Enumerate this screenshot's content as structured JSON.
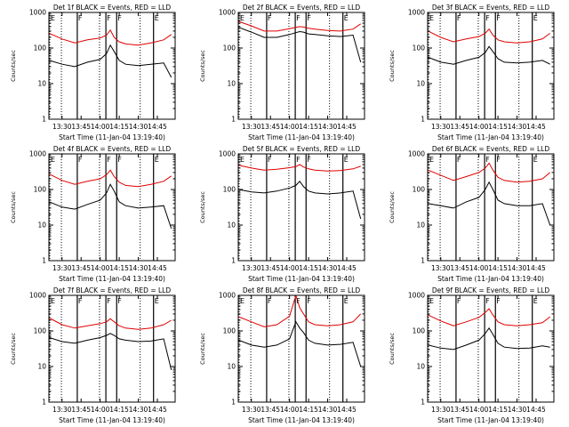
{
  "figure": {
    "colors": {
      "events": "#000000",
      "lld": "#e00000",
      "axes": "#000000"
    },
    "xlabel": "Start Time (11-Jan-04 13:19:40)",
    "ylabel": "Counts/sec"
  },
  "chart_data": [
    {
      "type": "line",
      "title": "Det 1f BLACK = Events, RED = LLD",
      "xlabel": "Start Time (11-Jan-04 13:19:40)",
      "ylabel": "Counts/sec",
      "ylog": true,
      "ylim": [
        1,
        1000
      ],
      "xlim": [
        "13:19:40",
        "14:59:00"
      ],
      "x_ticks": [
        "13:30",
        "13:45",
        "14:00",
        "14:15",
        "14:30",
        "14:45"
      ],
      "y_ticks": [
        "1",
        "10",
        "100",
        "1000"
      ],
      "x": [
        "13:20",
        "13:30",
        "13:40",
        "13:50",
        "14:00",
        "14:05",
        "14:08",
        "14:11",
        "14:15",
        "14:20",
        "14:30",
        "14:40",
        "14:50",
        "14:56"
      ],
      "series": [
        {
          "name": "Events",
          "color": "#000000",
          "values": [
            45,
            35,
            30,
            40,
            48,
            70,
            120,
            80,
            45,
            35,
            32,
            35,
            38,
            15
          ]
        },
        {
          "name": "LLD",
          "color": "#e00000",
          "values": [
            260,
            180,
            140,
            170,
            190,
            230,
            320,
            200,
            150,
            130,
            120,
            140,
            170,
            240
          ]
        }
      ],
      "vlines_dotted": [
        "13:20:20",
        "13:29:30",
        "13:59:30",
        "14:31:30"
      ],
      "vlines_solid": [
        "13:42:00",
        "14:04:30",
        "14:13:00",
        "14:42:00"
      ],
      "labels": [
        "E",
        "F",
        "F",
        "F",
        "E"
      ]
    },
    {
      "type": "line",
      "title": "Det 2f BLACK = Events, RED = LLD",
      "xlabel": "Start Time (11-Jan-04 13:19:40)",
      "ylabel": "Counts/sec",
      "ylog": true,
      "ylim": [
        1,
        1000
      ],
      "xlim": [
        "13:19:40",
        "14:59:00"
      ],
      "x_ticks": [
        "13:30",
        "13:45",
        "14:00",
        "14:15",
        "14:30",
        "14:45"
      ],
      "y_ticks": [
        "1",
        "10",
        "100",
        "1000"
      ],
      "x": [
        "13:20",
        "13:30",
        "13:40",
        "13:50",
        "14:00",
        "14:05",
        "14:08",
        "14:11",
        "14:15",
        "14:20",
        "14:30",
        "14:40",
        "14:50",
        "14:56"
      ],
      "series": [
        {
          "name": "Events",
          "color": "#000000",
          "values": [
            380,
            280,
            200,
            200,
            240,
            270,
            290,
            280,
            250,
            240,
            220,
            210,
            230,
            40
          ]
        },
        {
          "name": "LLD",
          "color": "#e00000",
          "values": [
            560,
            420,
            300,
            300,
            350,
            380,
            400,
            390,
            360,
            340,
            310,
            300,
            340,
            480
          ]
        }
      ],
      "vlines_dotted": [
        "13:20:20",
        "13:29:30",
        "13:59:30",
        "14:31:30"
      ],
      "vlines_solid": [
        "13:42:00",
        "14:04:30",
        "14:13:00",
        "14:42:00"
      ],
      "labels": [
        "E",
        "F",
        "F",
        "F",
        "E"
      ]
    },
    {
      "type": "line",
      "title": "Det 3f BLACK = Events, RED = LLD",
      "xlabel": "Start Time (11-Jan-04 13:19:40)",
      "ylabel": "Counts/sec",
      "ylog": true,
      "ylim": [
        1,
        1000
      ],
      "xlim": [
        "13:19:40",
        "14:59:00"
      ],
      "x_ticks": [
        "13:30",
        "13:45",
        "14:00",
        "14:15",
        "14:30",
        "14:45"
      ],
      "y_ticks": [
        "1",
        "10",
        "100",
        "1000"
      ],
      "x": [
        "13:20",
        "13:30",
        "13:40",
        "13:50",
        "14:00",
        "14:05",
        "14:08",
        "14:11",
        "14:15",
        "14:20",
        "14:30",
        "14:40",
        "14:50",
        "14:56"
      ],
      "series": [
        {
          "name": "Events",
          "color": "#000000",
          "values": [
            55,
            40,
            35,
            45,
            55,
            75,
            110,
            80,
            50,
            40,
            38,
            40,
            45,
            35
          ]
        },
        {
          "name": "LLD",
          "color": "#e00000",
          "values": [
            300,
            200,
            150,
            180,
            210,
            260,
            340,
            230,
            170,
            150,
            140,
            150,
            180,
            260
          ]
        }
      ],
      "vlines_dotted": [
        "13:20:20",
        "13:29:30",
        "13:59:30",
        "14:31:30"
      ],
      "vlines_solid": [
        "13:42:00",
        "14:04:30",
        "14:13:00",
        "14:42:00"
      ],
      "labels": [
        "E",
        "F",
        "F",
        "F",
        "E"
      ]
    },
    {
      "type": "line",
      "title": "Det 4f BLACK = Events, RED = LLD",
      "xlabel": "Start Time (11-Jan-04 13:19:40)",
      "ylabel": "Counts/sec",
      "ylog": true,
      "ylim": [
        1,
        1000
      ],
      "xlim": [
        "13:19:40",
        "14:59:00"
      ],
      "x_ticks": [
        "13:30",
        "13:45",
        "14:00",
        "14:15",
        "14:30",
        "14:45"
      ],
      "y_ticks": [
        "1",
        "10",
        "100",
        "1000"
      ],
      "x": [
        "13:20",
        "13:30",
        "13:40",
        "13:50",
        "14:00",
        "14:05",
        "14:08",
        "14:11",
        "14:15",
        "14:20",
        "14:30",
        "14:40",
        "14:50",
        "14:56"
      ],
      "series": [
        {
          "name": "Events",
          "color": "#000000",
          "values": [
            45,
            32,
            28,
            38,
            50,
            80,
            140,
            90,
            45,
            35,
            30,
            32,
            35,
            8
          ]
        },
        {
          "name": "LLD",
          "color": "#e00000",
          "values": [
            270,
            180,
            140,
            170,
            200,
            260,
            350,
            230,
            160,
            130,
            120,
            140,
            170,
            240
          ]
        }
      ],
      "vlines_dotted": [
        "13:20:20",
        "13:29:30",
        "13:59:30",
        "14:31:30"
      ],
      "vlines_solid": [
        "13:42:00",
        "14:04:30",
        "14:13:00",
        "14:42:00"
      ],
      "labels": [
        "E",
        "F",
        "F",
        "F",
        "E"
      ]
    },
    {
      "type": "line",
      "title": "Det 5f BLACK = Events, RED = LLD",
      "xlabel": "Start Time (11-Jan-04 13:19:40)",
      "ylabel": "Counts/sec",
      "ylog": true,
      "ylim": [
        1,
        1000
      ],
      "xlim": [
        "13:19:40",
        "14:59:00"
      ],
      "x_ticks": [
        "13:30",
        "13:45",
        "14:00",
        "14:15",
        "14:30",
        "14:45"
      ],
      "y_ticks": [
        "1",
        "10",
        "100",
        "1000"
      ],
      "x": [
        "13:20",
        "13:30",
        "13:40",
        "13:50",
        "14:00",
        "14:05",
        "14:08",
        "14:11",
        "14:15",
        "14:20",
        "14:30",
        "14:40",
        "14:50",
        "14:56"
      ],
      "series": [
        {
          "name": "Events",
          "color": "#000000",
          "values": [
            100,
            85,
            80,
            90,
            110,
            130,
            170,
            120,
            90,
            80,
            75,
            80,
            90,
            15
          ]
        },
        {
          "name": "LLD",
          "color": "#e00000",
          "values": [
            480,
            400,
            350,
            370,
            410,
            440,
            500,
            430,
            380,
            350,
            330,
            340,
            380,
            450
          ]
        }
      ],
      "vlines_dotted": [
        "13:20:20",
        "13:29:30",
        "13:59:30",
        "14:31:30"
      ],
      "vlines_solid": [
        "13:42:00",
        "14:04:30",
        "14:13:00",
        "14:42:00"
      ],
      "labels": [
        "E",
        "F",
        "F",
        "F",
        "E"
      ]
    },
    {
      "type": "line",
      "title": "Det 6f BLACK = Events, RED = LLD",
      "xlabel": "Start Time (11-Jan-04 13:19:40)",
      "ylabel": "Counts/sec",
      "ylog": true,
      "ylim": [
        1,
        1000
      ],
      "xlim": [
        "13:19:40",
        "14:59:00"
      ],
      "x_ticks": [
        "13:30",
        "13:45",
        "14:00",
        "14:15",
        "14:30",
        "14:45"
      ],
      "y_ticks": [
        "1",
        "10",
        "100",
        "1000"
      ],
      "x": [
        "13:20",
        "13:30",
        "13:40",
        "13:50",
        "14:00",
        "14:05",
        "14:08",
        "14:11",
        "14:15",
        "14:20",
        "14:30",
        "14:40",
        "14:50",
        "14:56"
      ],
      "series": [
        {
          "name": "Events",
          "color": "#000000",
          "values": [
            40,
            35,
            30,
            45,
            60,
            100,
            160,
            100,
            50,
            40,
            35,
            35,
            40,
            10
          ]
        },
        {
          "name": "LLD",
          "color": "#e00000",
          "values": [
            350,
            250,
            180,
            230,
            300,
            400,
            550,
            350,
            220,
            180,
            160,
            170,
            200,
            300
          ]
        }
      ],
      "vlines_dotted": [
        "13:20:20",
        "13:29:30",
        "13:59:30",
        "14:31:30"
      ],
      "vlines_solid": [
        "13:42:00",
        "14:04:30",
        "14:13:00",
        "14:42:00"
      ],
      "labels": [
        "E",
        "F",
        "F",
        "F",
        "E"
      ]
    },
    {
      "type": "line",
      "title": "Det 7f BLACK = Events, RED = LLD",
      "xlabel": "Start Time (11-Jan-04 13:19:40)",
      "ylabel": "Counts/sec",
      "ylog": true,
      "ylim": [
        1,
        1000
      ],
      "xlim": [
        "13:19:40",
        "14:59:00"
      ],
      "x_ticks": [
        "13:30",
        "13:45",
        "14:00",
        "14:15",
        "14:30",
        "14:45"
      ],
      "y_ticks": [
        "1",
        "10",
        "100",
        "1000"
      ],
      "x": [
        "13:20",
        "13:30",
        "13:40",
        "13:50",
        "14:00",
        "14:05",
        "14:08",
        "14:11",
        "14:15",
        "14:20",
        "14:30",
        "14:40",
        "14:50",
        "14:56"
      ],
      "series": [
        {
          "name": "Events",
          "color": "#000000",
          "values": [
            65,
            50,
            45,
            55,
            65,
            75,
            85,
            75,
            60,
            55,
            50,
            52,
            60,
            8
          ]
        },
        {
          "name": "LLD",
          "color": "#e00000",
          "values": [
            230,
            150,
            120,
            140,
            160,
            180,
            220,
            180,
            140,
            120,
            110,
            120,
            150,
            200
          ]
        }
      ],
      "vlines_dotted": [
        "13:20:20",
        "13:29:30",
        "13:59:30",
        "14:31:30"
      ],
      "vlines_solid": [
        "13:42:00",
        "14:04:30",
        "14:13:00",
        "14:42:00"
      ],
      "labels": [
        "E",
        "F",
        "F",
        "F",
        "E"
      ]
    },
    {
      "type": "line",
      "title": "Det 8f BLACK = Events, RED = LLD",
      "xlabel": "Start Time (11-Jan-04 13:19:40)",
      "ylabel": "Counts/sec",
      "ylog": true,
      "ylim": [
        1,
        1000
      ],
      "xlim": [
        "13:19:40",
        "14:59:00"
      ],
      "x_ticks": [
        "13:30",
        "13:45",
        "14:00",
        "14:15",
        "14:30",
        "14:45"
      ],
      "y_ticks": [
        "1",
        "10",
        "100",
        "1000"
      ],
      "x": [
        "13:20",
        "13:30",
        "13:40",
        "13:50",
        "14:00",
        "14:05",
        "14:08",
        "14:11",
        "14:15",
        "14:20",
        "14:30",
        "14:40",
        "14:50",
        "14:56"
      ],
      "series": [
        {
          "name": "Events",
          "color": "#000000",
          "values": [
            55,
            40,
            35,
            40,
            60,
            180,
            120,
            90,
            55,
            45,
            40,
            42,
            48,
            10
          ]
        },
        {
          "name": "LLD",
          "color": "#e00000",
          "values": [
            250,
            180,
            130,
            150,
            260,
            1000,
            450,
            300,
            180,
            150,
            140,
            150,
            180,
            300
          ]
        }
      ],
      "vlines_dotted": [
        "13:20:20",
        "13:29:30",
        "13:59:30",
        "14:31:30"
      ],
      "vlines_solid": [
        "13:42:00",
        "14:04:30",
        "14:13:00",
        "14:42:00"
      ],
      "labels": [
        "E",
        "F",
        "F",
        "F",
        "E"
      ]
    },
    {
      "type": "line",
      "title": "Det 9f BLACK = Events, RED = LLD",
      "xlabel": "Start Time (11-Jan-04 13:19:40)",
      "ylabel": "Counts/sec",
      "ylog": true,
      "ylim": [
        1,
        1000
      ],
      "xlim": [
        "13:19:40",
        "14:59:00"
      ],
      "x_ticks": [
        "13:30",
        "13:45",
        "14:00",
        "14:15",
        "14:30",
        "14:45"
      ],
      "y_ticks": [
        "1",
        "10",
        "100",
        "1000"
      ],
      "x": [
        "13:20",
        "13:30",
        "13:40",
        "13:50",
        "14:00",
        "14:05",
        "14:08",
        "14:11",
        "14:15",
        "14:20",
        "14:30",
        "14:40",
        "14:50",
        "14:56"
      ],
      "series": [
        {
          "name": "Events",
          "color": "#000000",
          "values": [
            40,
            33,
            30,
            40,
            55,
            85,
            120,
            80,
            45,
            35,
            32,
            33,
            38,
            35
          ]
        },
        {
          "name": "LLD",
          "color": "#e00000",
          "values": [
            280,
            190,
            140,
            180,
            240,
            330,
            420,
            280,
            180,
            150,
            140,
            150,
            170,
            250
          ]
        }
      ],
      "vlines_dotted": [
        "13:20:20",
        "13:29:30",
        "13:59:30",
        "14:31:30"
      ],
      "vlines_solid": [
        "13:42:00",
        "14:04:30",
        "14:13:00",
        "14:42:00"
      ],
      "labels": [
        "E",
        "F",
        "F",
        "F",
        "E"
      ]
    }
  ]
}
